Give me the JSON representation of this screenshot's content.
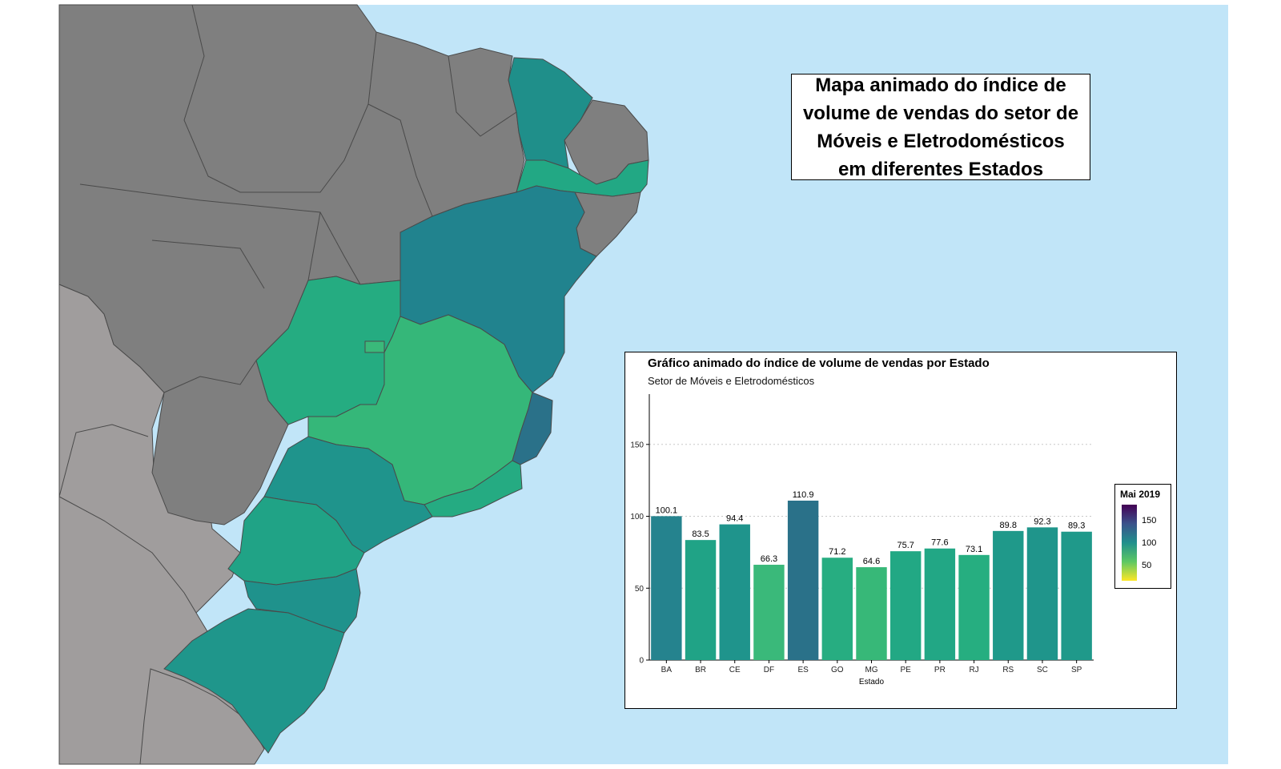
{
  "map": {
    "title_lines": [
      "Mapa animado do índice de",
      "volume de vendas do setor de",
      "Móveis e Eletrodomésticos",
      "em diferentes Estados"
    ],
    "colors": {
      "ocean": "#c1e5f8",
      "unselected_state": "#7f7f7f",
      "neighbor_country": "#a09d9d",
      "border": "#4a4a4a"
    },
    "states": [
      {
        "name": "CE",
        "color": "#1f8f8a"
      },
      {
        "name": "PE",
        "color": "#22a884"
      },
      {
        "name": "BA",
        "color": "#21838e"
      },
      {
        "name": "GO",
        "color": "#25ac81"
      },
      {
        "name": "DF",
        "color": "#3ab97a"
      },
      {
        "name": "MG",
        "color": "#35b779"
      },
      {
        "name": "ES",
        "color": "#2a7189"
      },
      {
        "name": "RJ",
        "color": "#25ab82"
      },
      {
        "name": "SP",
        "color": "#1f948c"
      },
      {
        "name": "PR",
        "color": "#20a386"
      },
      {
        "name": "SC",
        "color": "#1f928c"
      },
      {
        "name": "RS",
        "color": "#1f968b"
      }
    ]
  },
  "chart": {
    "title": "Gráfico animado do índice de volume de vendas por Estado",
    "subtitle": "Setor de Móveis e Eletrodomésticos",
    "legend": {
      "title": "Mai 2019",
      "labels": [
        "150",
        "100",
        "50"
      ]
    }
  },
  "chart_data": {
    "type": "bar",
    "categories": [
      "BA",
      "BR",
      "CE",
      "DF",
      "ES",
      "GO",
      "MG",
      "PE",
      "PR",
      "RJ",
      "RS",
      "SC",
      "SP"
    ],
    "values": [
      100.1,
      83.5,
      94.4,
      66.3,
      110.9,
      71.2,
      64.6,
      75.7,
      77.6,
      73.1,
      89.8,
      92.3,
      89.3
    ],
    "value_labels": [
      "100.1",
      "83.5",
      "94.4",
      "66.3",
      "110.9",
      "71.2",
      "64.6",
      "75.7",
      "77.6",
      "73.1",
      "89.8",
      "92.3",
      "89.3"
    ],
    "colors": [
      "#25838e",
      "#20a386",
      "#1f948c",
      "#3ab97a",
      "#2a7189",
      "#27ad81",
      "#37b878",
      "#22a884",
      "#22a785",
      "#26ae80",
      "#1f998a",
      "#1f958b",
      "#1f998a"
    ],
    "title": "Gráfico animado do índice de volume de vendas por Estado",
    "subtitle": "Setor de Móveis e Eletrodomésticos",
    "xlabel": "Estado",
    "ylabel": "",
    "ylim": [
      0,
      185
    ],
    "yticks": [
      0,
      50,
      100,
      150
    ],
    "grid": true,
    "legend_title": "Mai 2019",
    "legend_placement": "right"
  }
}
